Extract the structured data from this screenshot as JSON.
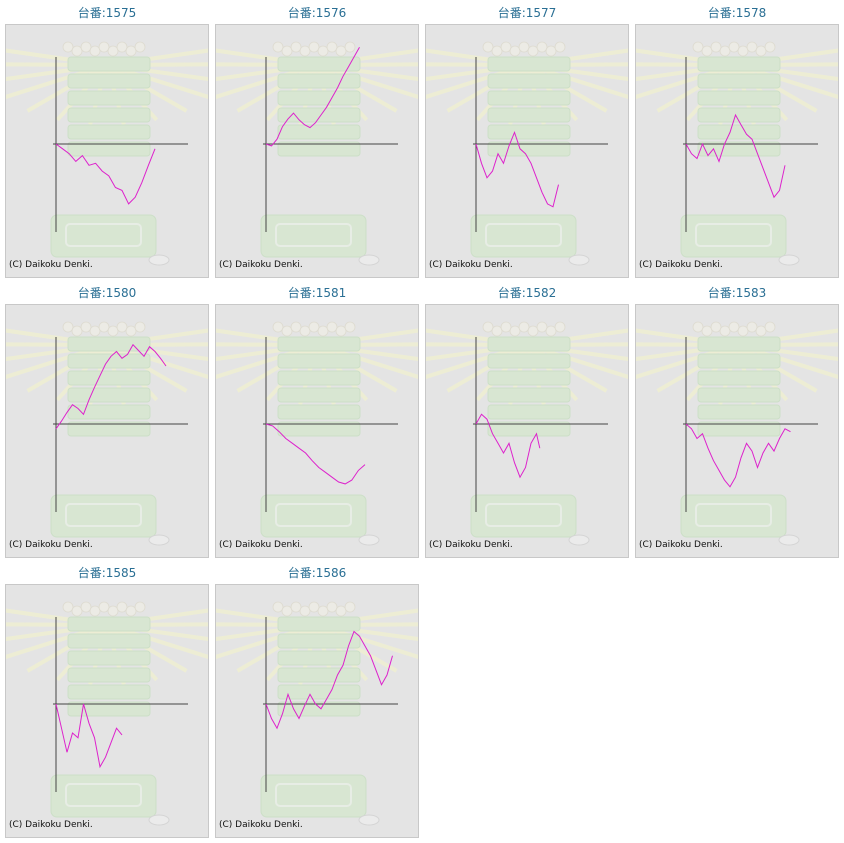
{
  "copyright": "(C) Daikoku Denki.",
  "colors": {
    "series": "#dd22cc",
    "title": "#2a6f94",
    "axis": "#444444",
    "panel": "#e4e4e4",
    "border": "#c8c8c8"
  },
  "chart_data": [
    {
      "type": "line",
      "title": "台番:1575",
      "x": [
        0,
        6,
        12,
        18,
        24,
        30,
        36,
        42,
        48,
        54,
        60,
        66,
        72,
        78,
        84,
        90
      ],
      "values": [
        0,
        -5,
        -10,
        -18,
        -12,
        -22,
        -20,
        -28,
        -33,
        -45,
        -48,
        -62,
        -55,
        -40,
        -22,
        -5
      ],
      "ylim": [
        -90,
        90
      ],
      "grid": false,
      "axes": true
    },
    {
      "type": "line",
      "title": "台番:1576",
      "x": [
        0,
        5,
        10,
        15,
        20,
        25,
        30,
        35,
        40,
        45,
        50,
        55,
        60,
        65,
        70,
        75,
        80,
        85
      ],
      "values": [
        0,
        -2,
        5,
        18,
        26,
        32,
        25,
        20,
        17,
        22,
        30,
        38,
        48,
        58,
        70,
        80,
        90,
        100
      ],
      "ylim": [
        -90,
        90
      ],
      "grid": false,
      "axes": true
    },
    {
      "type": "line",
      "title": "台番:1577",
      "x": [
        0,
        5,
        10,
        15,
        20,
        25,
        30,
        35,
        40,
        45,
        50,
        55,
        60,
        65,
        70,
        75
      ],
      "values": [
        0,
        -20,
        -35,
        -28,
        -10,
        -20,
        -2,
        12,
        -5,
        -10,
        -20,
        -35,
        -50,
        -62,
        -65,
        -42
      ],
      "ylim": [
        -90,
        90
      ],
      "grid": false,
      "axes": true
    },
    {
      "type": "line",
      "title": "台番:1578",
      "x": [
        0,
        5,
        10,
        15,
        20,
        25,
        30,
        35,
        40,
        45,
        50,
        55,
        60,
        65,
        70,
        75,
        80,
        85,
        90
      ],
      "values": [
        0,
        -10,
        -15,
        0,
        -12,
        -5,
        -18,
        0,
        12,
        30,
        20,
        10,
        5,
        -10,
        -25,
        -40,
        -55,
        -48,
        -22
      ],
      "ylim": [
        -90,
        90
      ],
      "grid": false,
      "axes": true
    },
    {
      "type": "line",
      "title": "台番:1580",
      "x": [
        0,
        5,
        10,
        15,
        20,
        25,
        30,
        35,
        40,
        45,
        50,
        55,
        60,
        65,
        70,
        75,
        80,
        85,
        90,
        95,
        100
      ],
      "values": [
        -5,
        3,
        12,
        20,
        16,
        10,
        25,
        38,
        50,
        62,
        70,
        75,
        68,
        72,
        82,
        76,
        70,
        80,
        75,
        68,
        60
      ],
      "ylim": [
        -90,
        90
      ],
      "grid": false,
      "axes": true
    },
    {
      "type": "line",
      "title": "台番:1581",
      "x": [
        0,
        6,
        12,
        18,
        24,
        30,
        36,
        42,
        48,
        54,
        60,
        66,
        72,
        78,
        84,
        90
      ],
      "values": [
        0,
        -2,
        -8,
        -15,
        -20,
        -25,
        -30,
        -38,
        -45,
        -50,
        -55,
        -60,
        -62,
        -58,
        -48,
        -42
      ],
      "ylim": [
        -90,
        90
      ],
      "grid": false,
      "axes": true
    },
    {
      "type": "line",
      "title": "台番:1582",
      "x": [
        0,
        5,
        10,
        15,
        20,
        25,
        30,
        35,
        40,
        45,
        50,
        55,
        58
      ],
      "values": [
        0,
        10,
        5,
        -10,
        -20,
        -30,
        -20,
        -40,
        -55,
        -45,
        -20,
        -10,
        -25
      ],
      "ylim": [
        -90,
        90
      ],
      "grid": false,
      "axes": true
    },
    {
      "type": "line",
      "title": "台番:1583",
      "x": [
        0,
        5,
        10,
        15,
        20,
        25,
        30,
        35,
        40,
        45,
        50,
        55,
        60,
        65,
        70,
        75,
        80,
        85,
        90,
        95
      ],
      "values": [
        0,
        -5,
        -15,
        -10,
        -25,
        -38,
        -48,
        -58,
        -65,
        -55,
        -35,
        -20,
        -28,
        -45,
        -30,
        -20,
        -28,
        -15,
        -5,
        -8
      ],
      "ylim": [
        -90,
        90
      ],
      "grid": false,
      "axes": true
    },
    {
      "type": "line",
      "title": "台番:1585",
      "x": [
        0,
        5,
        10,
        15,
        20,
        25,
        30,
        35,
        40,
        45,
        50,
        55,
        60
      ],
      "values": [
        0,
        -25,
        -50,
        -30,
        -35,
        0,
        -20,
        -35,
        -65,
        -55,
        -40,
        -25,
        -32
      ],
      "ylim": [
        -90,
        90
      ],
      "grid": false,
      "axes": true
    },
    {
      "type": "line",
      "title": "台番:1586",
      "x": [
        0,
        5,
        10,
        15,
        20,
        25,
        30,
        35,
        40,
        45,
        50,
        55,
        60,
        65,
        70,
        75,
        80,
        85,
        90,
        95,
        100,
        105,
        110,
        115
      ],
      "values": [
        0,
        -15,
        -25,
        -10,
        10,
        -5,
        -15,
        -2,
        10,
        0,
        -5,
        5,
        15,
        30,
        40,
        60,
        75,
        70,
        60,
        50,
        35,
        20,
        30,
        50
      ],
      "ylim": [
        -90,
        90
      ],
      "grid": false,
      "axes": true
    }
  ]
}
